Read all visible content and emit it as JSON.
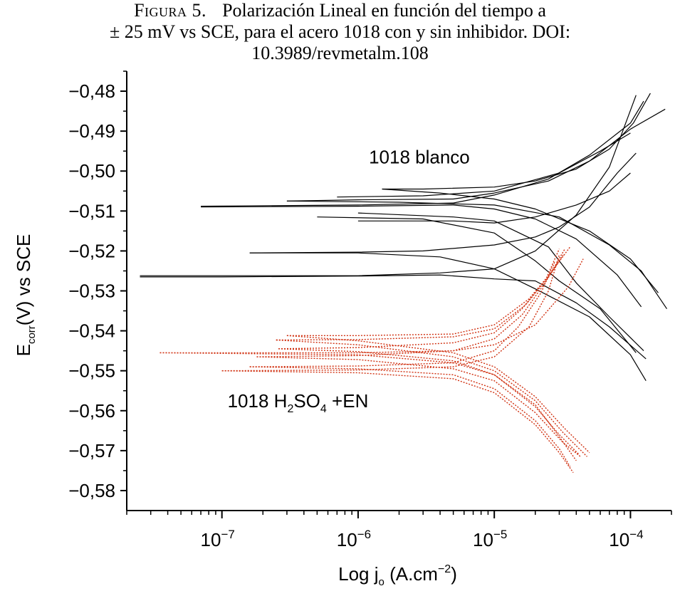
{
  "caption": {
    "label": "Figura 5.",
    "line1": "Polarización Lineal en función del tiempo a",
    "line2": "± 25 mV vs SCE, para el acero 1018 con y sin inhibidor. DOI:",
    "line3": "10.3989/revmetalm.108"
  },
  "chart_data": {
    "type": "line",
    "xscale": "log",
    "xlim": [
      2e-08,
      0.0002
    ],
    "ylim": [
      -0.585,
      -0.475
    ],
    "x_ticks": [
      {
        "value": 1e-07,
        "base": "10",
        "exp": "−7"
      },
      {
        "value": 1e-06,
        "base": "10",
        "exp": "−6"
      },
      {
        "value": 1e-05,
        "base": "10",
        "exp": "−5"
      },
      {
        "value": 0.0001,
        "base": "10",
        "exp": "−4"
      }
    ],
    "y_ticks": [
      {
        "value": -0.48,
        "label": "−0,48"
      },
      {
        "value": -0.49,
        "label": "−0,49"
      },
      {
        "value": -0.5,
        "label": "−0,50"
      },
      {
        "value": -0.51,
        "label": "−0,51"
      },
      {
        "value": -0.52,
        "label": "−0,52"
      },
      {
        "value": -0.53,
        "label": "−0,53"
      },
      {
        "value": -0.54,
        "label": "−0,54"
      },
      {
        "value": -0.55,
        "label": "−0,55"
      },
      {
        "value": -0.56,
        "label": "−0,56"
      },
      {
        "value": -0.57,
        "label": "−0,57"
      },
      {
        "value": -0.58,
        "label": "−0,58"
      }
    ],
    "xlabel": {
      "prefix": "Log j",
      "sub": "o",
      "mid": " (A.cm",
      "sup": "−2",
      "suffix": ")"
    },
    "ylabel": {
      "prefix": "E",
      "sub": "corr",
      "suffix": "(V) vs SCE"
    },
    "annotations": [
      {
        "text": "1018 blanco",
        "x": 1.2e-06,
        "y": -0.4965
      },
      {
        "parts": [
          "1018 H",
          "2",
          "SO",
          "4",
          " +EN"
        ],
        "x": 1.1e-07,
        "y": -0.5575
      }
    ],
    "series": [
      {
        "group": "blanco",
        "color": "#000000",
        "style": "solid",
        "points": [
          [
            2.5e-08,
            -0.5265
          ],
          [
            1e-07,
            -0.5265
          ],
          [
            1e-06,
            -0.5263
          ],
          [
            4e-06,
            -0.526
          ],
          [
            1e-05,
            -0.527
          ],
          [
            2e-05,
            -0.5275
          ],
          [
            4e-05,
            -0.533
          ],
          [
            7e-05,
            -0.539
          ],
          [
            0.00013,
            -0.547
          ]
        ]
      },
      {
        "group": "blanco",
        "color": "#000000",
        "style": "solid",
        "points": [
          [
            2.5e-08,
            -0.5262
          ],
          [
            1e-06,
            -0.5262
          ],
          [
            4e-06,
            -0.5255
          ],
          [
            1e-05,
            -0.5245
          ],
          [
            2e-05,
            -0.52
          ],
          [
            4e-05,
            -0.511
          ],
          [
            7e-05,
            -0.499
          ],
          [
            0.00011,
            -0.481
          ]
        ]
      },
      {
        "group": "blanco",
        "color": "#000000",
        "style": "solid",
        "points": [
          [
            7e-08,
            -0.509
          ],
          [
            1e-06,
            -0.5088
          ],
          [
            5e-06,
            -0.5085
          ],
          [
            1e-05,
            -0.5095
          ],
          [
            2e-05,
            -0.512
          ],
          [
            4e-05,
            -0.517
          ],
          [
            8e-05,
            -0.526
          ],
          [
            0.00012,
            -0.534
          ]
        ]
      },
      {
        "group": "blanco",
        "color": "#000000",
        "style": "solid",
        "points": [
          [
            7e-08,
            -0.5088
          ],
          [
            1e-06,
            -0.5085
          ],
          [
            5e-06,
            -0.508
          ],
          [
            1e-05,
            -0.506
          ],
          [
            2.5e-05,
            -0.502
          ],
          [
            5e-05,
            -0.496
          ],
          [
            0.0001,
            -0.488
          ],
          [
            0.000125,
            -0.4825
          ]
        ]
      },
      {
        "group": "blanco",
        "color": "#000000",
        "style": "solid",
        "points": [
          [
            1.6e-07,
            -0.5205
          ],
          [
            1e-06,
            -0.5203
          ],
          [
            3e-06,
            -0.52
          ],
          [
            1e-05,
            -0.5185
          ],
          [
            2e-05,
            -0.5165
          ],
          [
            3e-05,
            -0.514
          ],
          [
            5e-05,
            -0.509
          ],
          [
            8e-05,
            -0.5005
          ],
          [
            0.00011,
            -0.4955
          ]
        ]
      },
      {
        "group": "blanco",
        "color": "#000000",
        "style": "solid",
        "points": [
          [
            1.6e-07,
            -0.5205
          ],
          [
            1e-06,
            -0.5205
          ],
          [
            4e-06,
            -0.5215
          ],
          [
            1e-05,
            -0.5245
          ],
          [
            2e-05,
            -0.5295
          ],
          [
            5e-05,
            -0.5365
          ],
          [
            0.0001,
            -0.546
          ],
          [
            0.00013,
            -0.5525
          ]
        ]
      },
      {
        "group": "blanco",
        "color": "#000000",
        "style": "solid",
        "points": [
          [
            1.5e-06,
            -0.5045
          ],
          [
            3e-06,
            -0.5045
          ],
          [
            1e-05,
            -0.504
          ],
          [
            2e-05,
            -0.5025
          ],
          [
            4e-05,
            -0.4995
          ],
          [
            7e-05,
            -0.4945
          ],
          [
            0.000105,
            -0.488
          ],
          [
            0.00014,
            -0.4805
          ]
        ]
      },
      {
        "group": "blanco",
        "color": "#000000",
        "style": "solid",
        "points": [
          [
            1.5e-06,
            -0.5045
          ],
          [
            4e-06,
            -0.5055
          ],
          [
            1e-05,
            -0.507
          ],
          [
            2e-05,
            -0.5095
          ],
          [
            5e-05,
            -0.515
          ],
          [
            0.0001,
            -0.522
          ],
          [
            0.00016,
            -0.5305
          ]
        ]
      },
      {
        "group": "blanco",
        "color": "#000000",
        "style": "solid",
        "points": [
          [
            3e-07,
            -0.5075
          ],
          [
            1e-06,
            -0.5072
          ],
          [
            5e-06,
            -0.507
          ],
          [
            1e-05,
            -0.5055
          ],
          [
            2.5e-05,
            -0.5025
          ],
          [
            5e-05,
            -0.4975
          ],
          [
            0.0001,
            -0.4895
          ],
          [
            0.00018,
            -0.4845
          ]
        ]
      },
      {
        "group": "blanco",
        "color": "#000000",
        "style": "solid",
        "points": [
          [
            3e-07,
            -0.5075
          ],
          [
            2e-06,
            -0.5078
          ],
          [
            1e-05,
            -0.5085
          ],
          [
            3e-05,
            -0.5115
          ],
          [
            7e-05,
            -0.5185
          ],
          [
            0.00012,
            -0.525
          ],
          [
            0.000185,
            -0.5345
          ]
        ]
      },
      {
        "group": "blanco",
        "color": "#000000",
        "style": "solid",
        "points": [
          [
            1e-06,
            -0.5125
          ],
          [
            5e-06,
            -0.5125
          ],
          [
            1e-05,
            -0.513
          ],
          [
            2e-05,
            -0.5115
          ],
          [
            4e-05,
            -0.5085
          ],
          [
            7e-05,
            -0.505
          ],
          [
            0.0001,
            -0.5005
          ]
        ]
      },
      {
        "group": "blanco",
        "color": "#000000",
        "style": "solid",
        "points": [
          [
            7e-07,
            -0.5065
          ],
          [
            3e-06,
            -0.5062
          ],
          [
            1e-05,
            -0.505
          ],
          [
            3e-05,
            -0.5005
          ],
          [
            6e-05,
            -0.495
          ],
          [
            0.0001,
            -0.4905
          ]
        ]
      },
      {
        "group": "blanco",
        "color": "#000000",
        "style": "solid",
        "points": [
          [
            5e-07,
            -0.5115
          ],
          [
            3e-06,
            -0.512
          ],
          [
            1e-05,
            -0.5155
          ],
          [
            2e-05,
            -0.5225
          ],
          [
            3e-05,
            -0.5275
          ],
          [
            6e-05,
            -0.5345
          ],
          [
            0.00011,
            -0.5455
          ]
        ]
      },
      {
        "group": "blanco",
        "color": "#000000",
        "style": "solid",
        "points": [
          [
            1e-06,
            -0.5105
          ],
          [
            5e-06,
            -0.5115
          ],
          [
            1e-05,
            -0.5125
          ],
          [
            2.5e-05,
            -0.519
          ],
          [
            4e-05,
            -0.528
          ],
          [
            7e-05,
            -0.5365
          ],
          [
            0.000125,
            -0.545
          ]
        ]
      },
      {
        "group": "EN",
        "color": "#d03010",
        "style": "dotted",
        "points": [
          [
            3.5e-08,
            -0.5455
          ],
          [
            1e-06,
            -0.5455
          ],
          [
            5e-06,
            -0.545
          ],
          [
            1e-05,
            -0.5435
          ],
          [
            2e-05,
            -0.5385
          ],
          [
            3.5e-05,
            -0.529
          ],
          [
            4.5e-05,
            -0.522
          ]
        ]
      },
      {
        "group": "EN",
        "color": "#d03010",
        "style": "dotted",
        "points": [
          [
            3.5e-08,
            -0.5455
          ],
          [
            1e-06,
            -0.546
          ],
          [
            5e-06,
            -0.548
          ],
          [
            1e-05,
            -0.551
          ],
          [
            2e-05,
            -0.5585
          ],
          [
            3e-05,
            -0.5665
          ],
          [
            4e-05,
            -0.5725
          ]
        ]
      },
      {
        "group": "EN",
        "color": "#d03010",
        "style": "dotted",
        "points": [
          [
            1e-07,
            -0.55
          ],
          [
            1e-06,
            -0.5498
          ],
          [
            5e-06,
            -0.549
          ],
          [
            1e-05,
            -0.5465
          ],
          [
            1.8e-05,
            -0.539
          ],
          [
            2.5e-05,
            -0.53
          ],
          [
            3e-05,
            -0.521
          ]
        ]
      },
      {
        "group": "EN",
        "color": "#d03010",
        "style": "dotted",
        "points": [
          [
            1e-07,
            -0.55
          ],
          [
            1e-06,
            -0.5505
          ],
          [
            5e-06,
            -0.552
          ],
          [
            1e-05,
            -0.5555
          ],
          [
            2e-05,
            -0.5635
          ],
          [
            3e-05,
            -0.5705
          ],
          [
            3.8e-05,
            -0.5755
          ]
        ]
      },
      {
        "group": "EN",
        "color": "#d03010",
        "style": "dotted",
        "points": [
          [
            1.6e-07,
            -0.549
          ],
          [
            1e-06,
            -0.5488
          ],
          [
            5e-06,
            -0.548
          ],
          [
            1e-05,
            -0.545
          ],
          [
            1.5e-05,
            -0.539
          ],
          [
            2.2e-05,
            -0.5305
          ],
          [
            2.8e-05,
            -0.5225
          ]
        ]
      },
      {
        "group": "EN",
        "color": "#d03010",
        "style": "dotted",
        "points": [
          [
            1.6e-07,
            -0.549
          ],
          [
            1e-06,
            -0.5495
          ],
          [
            5e-06,
            -0.551
          ],
          [
            1e-05,
            -0.5545
          ],
          [
            2e-05,
            -0.5625
          ],
          [
            3e-05,
            -0.5695
          ],
          [
            3.6e-05,
            -0.574
          ]
        ]
      },
      {
        "group": "EN",
        "color": "#d03010",
        "style": "dotted",
        "points": [
          [
            1.8e-07,
            -0.5465
          ],
          [
            1e-06,
            -0.5462
          ],
          [
            5e-06,
            -0.545
          ],
          [
            1e-05,
            -0.542
          ],
          [
            1.6e-05,
            -0.536
          ],
          [
            2.3e-05,
            -0.5285
          ],
          [
            3.2e-05,
            -0.521
          ]
        ]
      },
      {
        "group": "EN",
        "color": "#d03010",
        "style": "dotted",
        "points": [
          [
            1.8e-07,
            -0.5465
          ],
          [
            1e-06,
            -0.5472
          ],
          [
            5e-06,
            -0.5495
          ],
          [
            1e-05,
            -0.5525
          ],
          [
            2e-05,
            -0.5605
          ],
          [
            3.2e-05,
            -0.568
          ],
          [
            4.3e-05,
            -0.5715
          ]
        ]
      },
      {
        "group": "EN",
        "color": "#d03010",
        "style": "dotted",
        "points": [
          [
            2.6e-07,
            -0.5445
          ],
          [
            1e-06,
            -0.5442
          ],
          [
            5e-06,
            -0.543
          ],
          [
            1e-05,
            -0.5405
          ],
          [
            1.6e-05,
            -0.5345
          ],
          [
            2.4e-05,
            -0.527
          ],
          [
            3e-05,
            -0.5195
          ]
        ]
      },
      {
        "group": "EN",
        "color": "#d03010",
        "style": "dotted",
        "points": [
          [
            2.6e-07,
            -0.5445
          ],
          [
            1e-06,
            -0.5452
          ],
          [
            5e-06,
            -0.5475
          ],
          [
            1e-05,
            -0.551
          ],
          [
            2e-05,
            -0.559
          ],
          [
            3e-05,
            -0.566
          ],
          [
            4.2e-05,
            -0.571
          ]
        ]
      },
      {
        "group": "EN",
        "color": "#d03010",
        "style": "dotted",
        "points": [
          [
            2.5e-07,
            -0.5423
          ],
          [
            1e-06,
            -0.5422
          ],
          [
            5e-06,
            -0.5415
          ],
          [
            1e-05,
            -0.5395
          ],
          [
            1.7e-05,
            -0.5335
          ],
          [
            2.5e-05,
            -0.5265
          ],
          [
            3.3e-05,
            -0.5195
          ]
        ]
      },
      {
        "group": "EN",
        "color": "#d03010",
        "style": "dotted",
        "points": [
          [
            2.5e-07,
            -0.5423
          ],
          [
            1e-06,
            -0.5435
          ],
          [
            5e-06,
            -0.5465
          ],
          [
            1e-05,
            -0.55
          ],
          [
            2e-05,
            -0.5575
          ],
          [
            3.2e-05,
            -0.5655
          ],
          [
            4.8e-05,
            -0.5715
          ]
        ]
      },
      {
        "group": "EN",
        "color": "#d03010",
        "style": "dotted",
        "points": [
          [
            3e-07,
            -0.5412
          ],
          [
            1e-06,
            -0.5412
          ],
          [
            5e-06,
            -0.5408
          ],
          [
            1e-05,
            -0.5385
          ],
          [
            1.8e-05,
            -0.532
          ],
          [
            2.6e-05,
            -0.5255
          ],
          [
            3.6e-05,
            -0.519
          ]
        ]
      },
      {
        "group": "EN",
        "color": "#d03010",
        "style": "dotted",
        "points": [
          [
            3e-07,
            -0.5412
          ],
          [
            1e-06,
            -0.5425
          ],
          [
            5e-06,
            -0.5455
          ],
          [
            1e-05,
            -0.549
          ],
          [
            2e-05,
            -0.5565
          ],
          [
            3.3e-05,
            -0.5645
          ],
          [
            5e-05,
            -0.5705
          ]
        ]
      }
    ]
  }
}
